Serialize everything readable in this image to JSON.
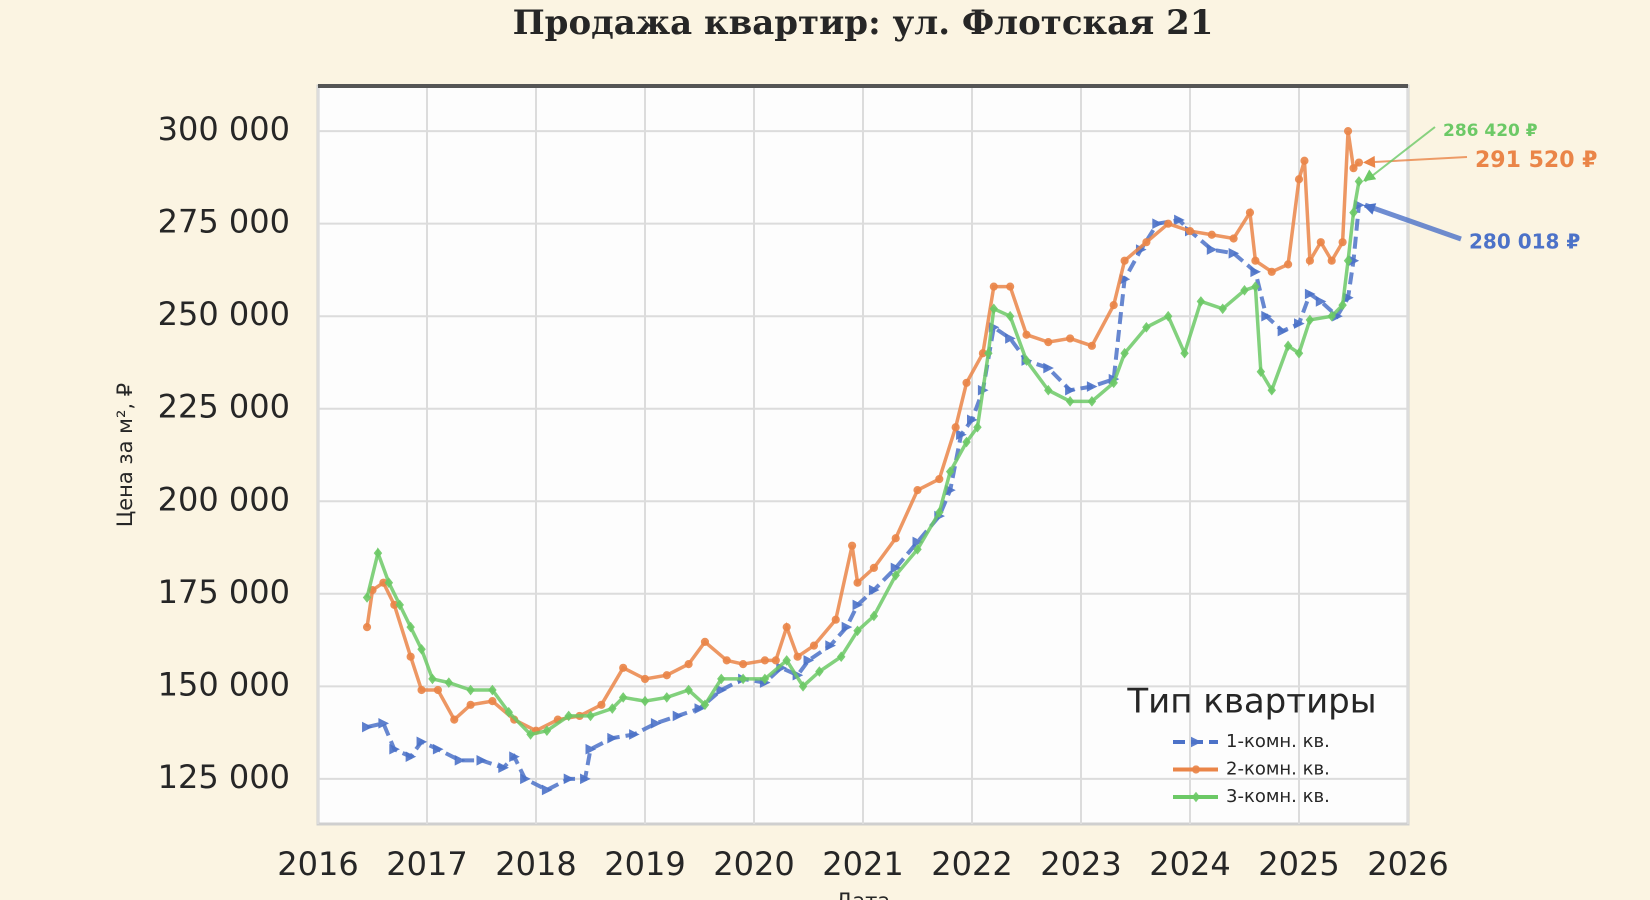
{
  "chart_data": {
    "type": "line",
    "title": "Продажа квартир: ул. Флотская 21",
    "xlabel": "Дата",
    "ylabel": "Цена за м², ₽",
    "legend_title": "Тип квартиры",
    "legend_loc": "lower right",
    "grid": true,
    "xlim": [
      2016,
      2026
    ],
    "xticks": [
      2016,
      2017,
      2018,
      2019,
      2020,
      2021,
      2022,
      2023,
      2024,
      2025,
      2026
    ],
    "ylim": [
      112800,
      312200
    ],
    "yticks": [
      {
        "value": 125000,
        "label": "125 000"
      },
      {
        "value": 150000,
        "label": "150 000"
      },
      {
        "value": 175000,
        "label": "175 000"
      },
      {
        "value": 200000,
        "label": "200 000"
      },
      {
        "value": 225000,
        "label": "225 000"
      },
      {
        "value": 250000,
        "label": "250 000"
      },
      {
        "value": 275000,
        "label": "275 000"
      },
      {
        "value": 300000,
        "label": "300 000"
      }
    ],
    "series": [
      {
        "name": "1-комн. кв.",
        "color": "#4c72c8",
        "dash": true,
        "marker": "triangle",
        "end_label": "280 018 ₽",
        "x": [
          2016.45,
          2016.6,
          2016.7,
          2016.85,
          2016.95,
          2017.1,
          2017.3,
          2017.5,
          2017.7,
          2017.8,
          2017.9,
          2018.1,
          2018.3,
          2018.45,
          2018.5,
          2018.7,
          2018.9,
          2019.1,
          2019.3,
          2019.5,
          2019.7,
          2019.9,
          2020.1,
          2020.25,
          2020.4,
          2020.5,
          2020.7,
          2020.85,
          2020.95,
          2021.1,
          2021.3,
          2021.5,
          2021.7,
          2021.8,
          2021.9,
          2022.0,
          2022.1,
          2022.2,
          2022.35,
          2022.5,
          2022.7,
          2022.9,
          2023.1,
          2023.3,
          2023.4,
          2023.55,
          2023.7,
          2023.9,
          2024.0,
          2024.2,
          2024.4,
          2024.6,
          2024.7,
          2024.85,
          2025.0,
          2025.1,
          2025.2,
          2025.35,
          2025.45,
          2025.5,
          2025.55
        ],
        "values": [
          139000,
          140000,
          133000,
          131000,
          135000,
          133000,
          130000,
          130000,
          128000,
          131000,
          125000,
          122000,
          125000,
          125000,
          133000,
          136000,
          137000,
          140000,
          142000,
          144000,
          149000,
          152000,
          151000,
          155000,
          153000,
          157000,
          161000,
          166000,
          172000,
          176000,
          182000,
          189000,
          196000,
          203000,
          218000,
          222000,
          230000,
          247000,
          244000,
          238000,
          236000,
          230000,
          231000,
          233000,
          260000,
          268000,
          275000,
          276000,
          273000,
          268000,
          267000,
          262000,
          250000,
          246000,
          248000,
          256000,
          254000,
          250000,
          255000,
          265000,
          280018
        ]
      },
      {
        "name": "2-комн. кв.",
        "color": "#ea8548",
        "dash": false,
        "marker": "circle",
        "end_label": "291 520 ₽",
        "x": [
          2016.45,
          2016.5,
          2016.6,
          2016.7,
          2016.85,
          2016.95,
          2017.1,
          2017.25,
          2017.4,
          2017.6,
          2017.8,
          2018.0,
          2018.2,
          2018.4,
          2018.6,
          2018.8,
          2019.0,
          2019.2,
          2019.4,
          2019.55,
          2019.75,
          2019.9,
          2020.1,
          2020.2,
          2020.3,
          2020.4,
          2020.55,
          2020.75,
          2020.9,
          2020.95,
          2021.1,
          2021.3,
          2021.5,
          2021.7,
          2021.85,
          2021.95,
          2022.1,
          2022.2,
          2022.35,
          2022.5,
          2022.7,
          2022.9,
          2023.1,
          2023.3,
          2023.4,
          2023.6,
          2023.8,
          2024.0,
          2024.2,
          2024.4,
          2024.55,
          2024.6,
          2024.75,
          2024.9,
          2025.0,
          2025.05,
          2025.1,
          2025.2,
          2025.3,
          2025.4,
          2025.45,
          2025.5,
          2025.55
        ],
        "values": [
          166000,
          176000,
          178000,
          172000,
          158000,
          149000,
          149000,
          141000,
          145000,
          146000,
          141000,
          138000,
          141000,
          142000,
          145000,
          155000,
          152000,
          153000,
          156000,
          162000,
          157000,
          156000,
          157000,
          157000,
          166000,
          158000,
          161000,
          168000,
          188000,
          178000,
          182000,
          190000,
          203000,
          206000,
          220000,
          232000,
          240000,
          258000,
          258000,
          245000,
          243000,
          244000,
          242000,
          253000,
          265000,
          270000,
          275000,
          273000,
          272000,
          271000,
          278000,
          265000,
          262000,
          264000,
          287000,
          292000,
          265000,
          270000,
          265000,
          270000,
          300000,
          290000,
          291520
        ]
      },
      {
        "name": "3-комн. кв.",
        "color": "#6cc966",
        "dash": false,
        "marker": "diamond",
        "end_label": "286 420 ₽",
        "x": [
          2016.45,
          2016.55,
          2016.65,
          2016.75,
          2016.85,
          2016.95,
          2017.05,
          2017.2,
          2017.4,
          2017.6,
          2017.75,
          2017.95,
          2018.1,
          2018.3,
          2018.5,
          2018.7,
          2018.8,
          2019.0,
          2019.2,
          2019.4,
          2019.55,
          2019.7,
          2019.9,
          2020.1,
          2020.3,
          2020.45,
          2020.6,
          2020.8,
          2020.95,
          2021.1,
          2021.3,
          2021.5,
          2021.7,
          2021.8,
          2021.95,
          2022.05,
          2022.15,
          2022.2,
          2022.35,
          2022.5,
          2022.7,
          2022.9,
          2023.1,
          2023.3,
          2023.4,
          2023.6,
          2023.8,
          2023.95,
          2024.1,
          2024.3,
          2024.5,
          2024.6,
          2024.65,
          2024.75,
          2024.9,
          2025.0,
          2025.1,
          2025.3,
          2025.4,
          2025.45,
          2025.5,
          2025.55
        ],
        "values": [
          174000,
          186000,
          178000,
          172000,
          166000,
          160000,
          152000,
          151000,
          149000,
          149000,
          143000,
          137000,
          138000,
          142000,
          142000,
          144000,
          147000,
          146000,
          147000,
          149000,
          145000,
          152000,
          152000,
          152000,
          157000,
          150000,
          154000,
          158000,
          165000,
          169000,
          180000,
          187000,
          197000,
          208000,
          216000,
          220000,
          240000,
          252000,
          250000,
          238000,
          230000,
          227000,
          227000,
          232000,
          240000,
          247000,
          250000,
          240000,
          254000,
          252000,
          257000,
          258000,
          235000,
          230000,
          242000,
          240000,
          249000,
          250000,
          253000,
          265000,
          278000,
          286420
        ]
      }
    ]
  }
}
